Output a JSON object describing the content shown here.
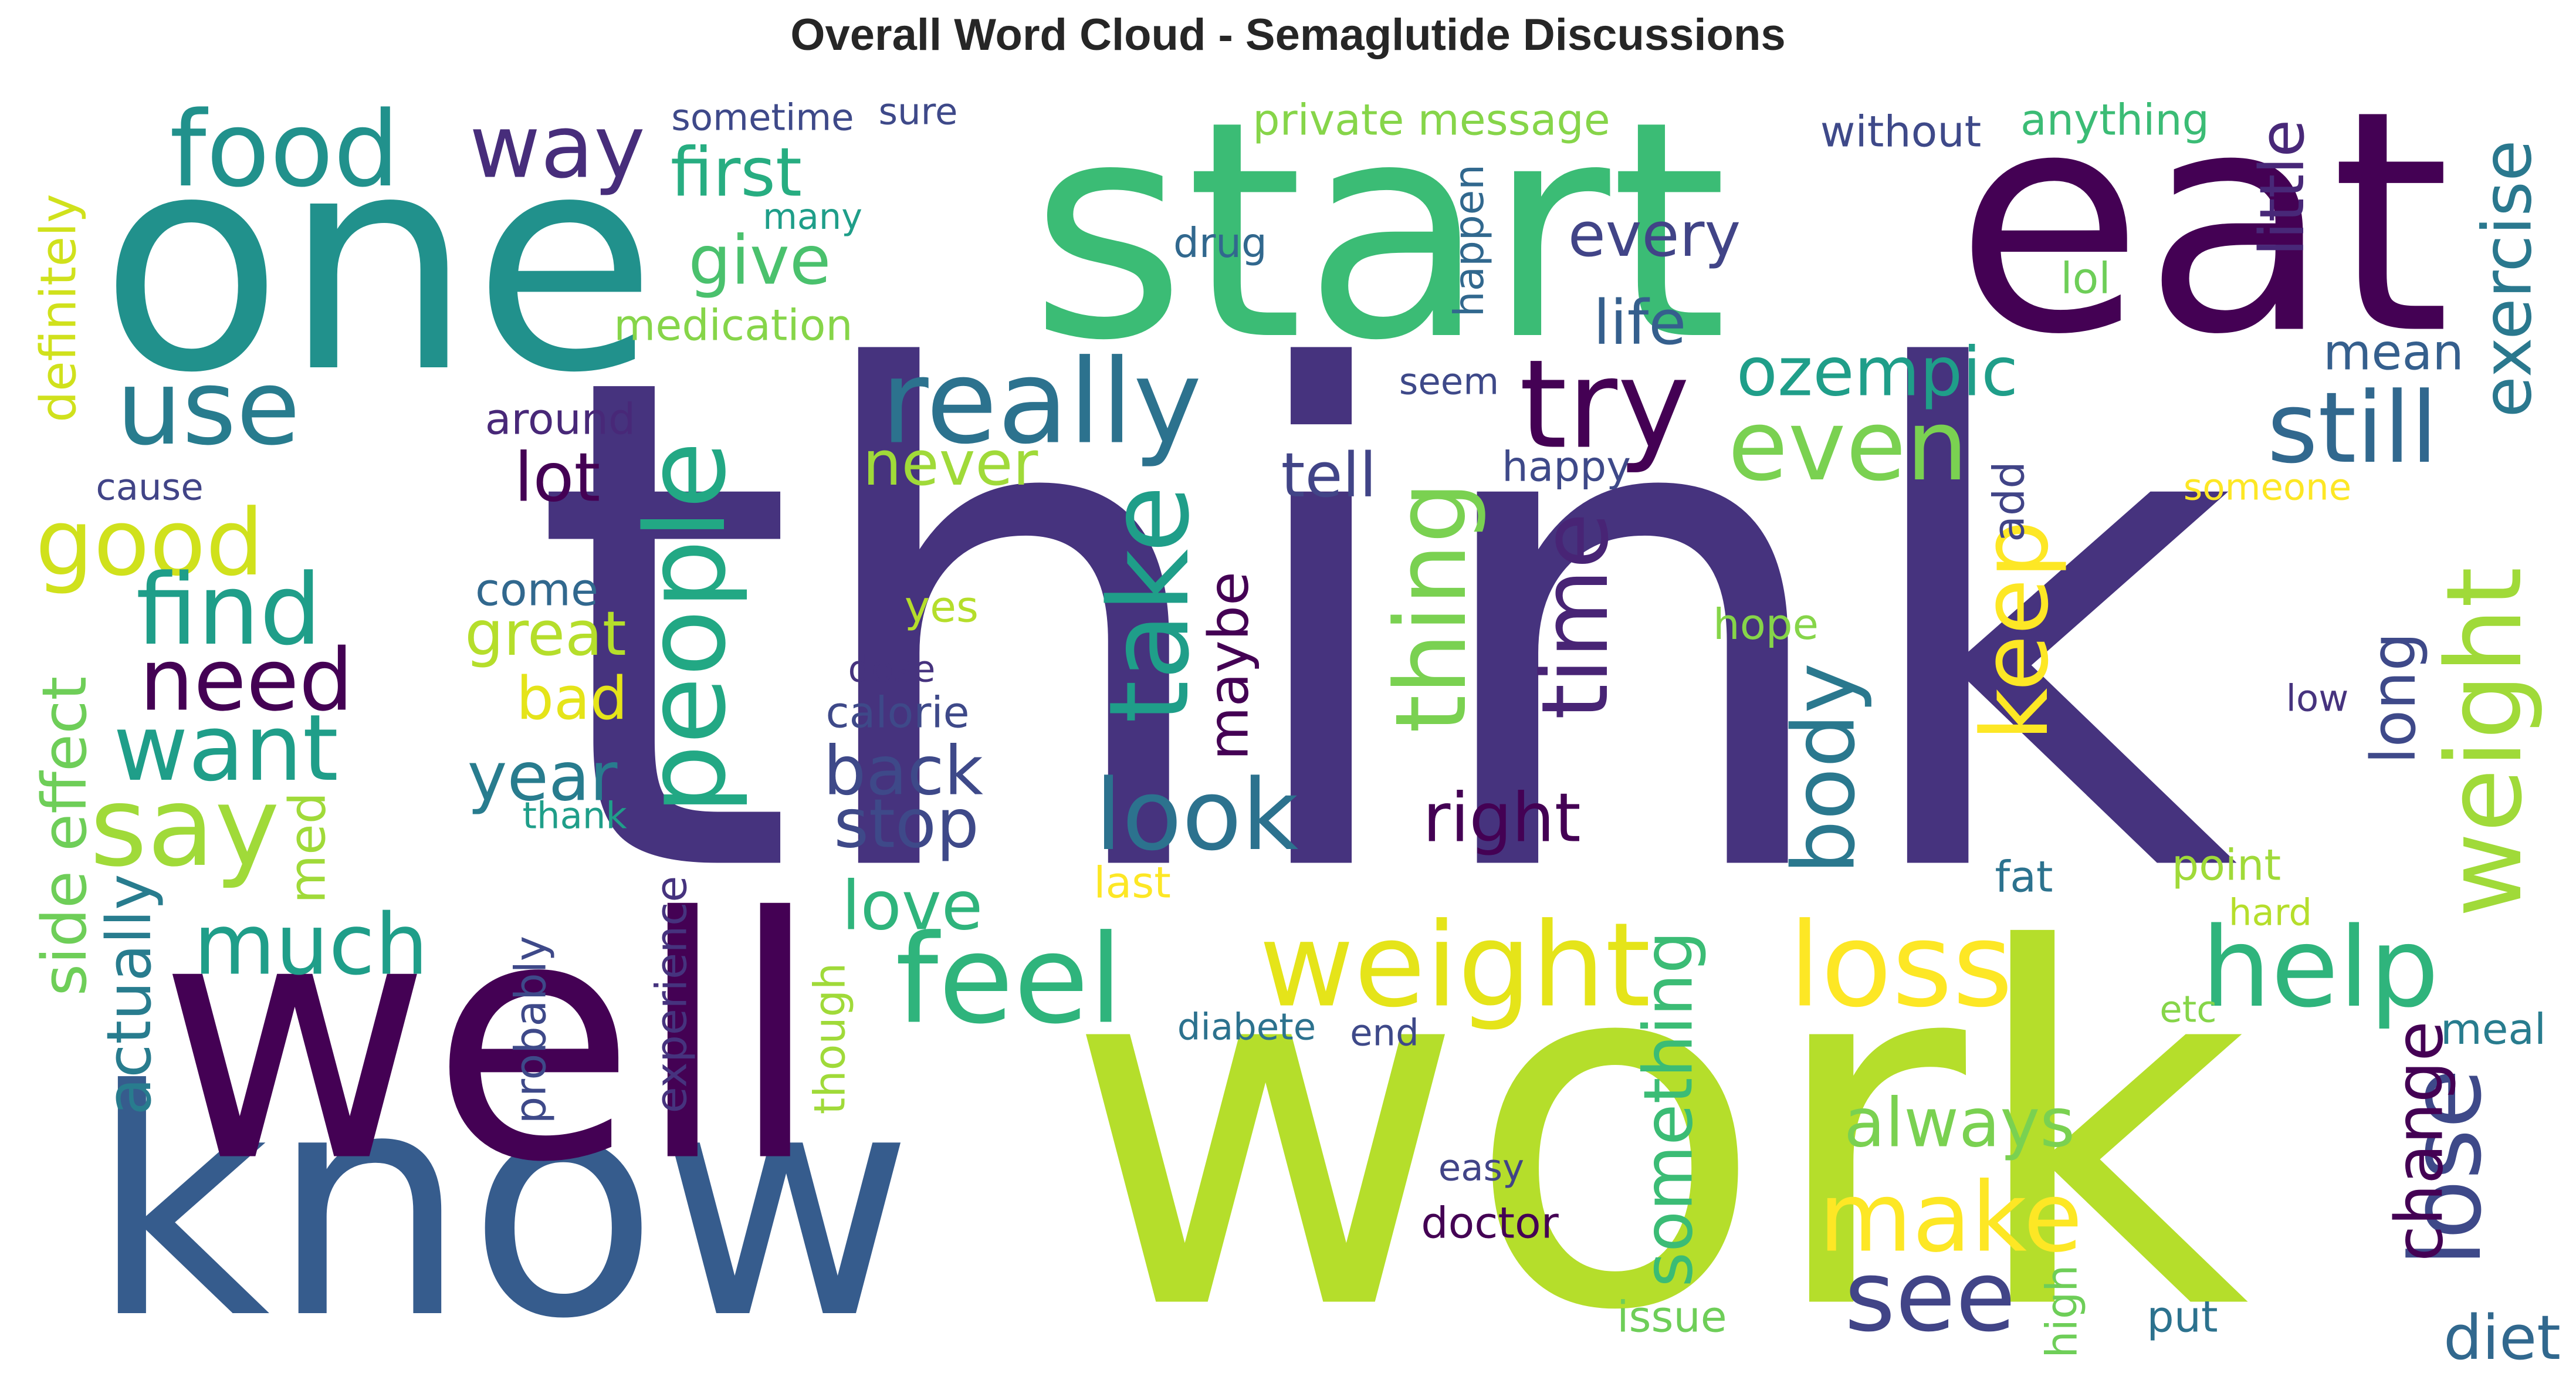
{
  "title": "Overall Word Cloud - Semaglutide Discussions",
  "chart_data": {
    "type": "wordcloud",
    "colormap": "viridis",
    "background": "#ffffff",
    "words": [
      {
        "text": "think",
        "color": "#46337e"
      },
      {
        "text": "work",
        "color": "#b5de2b"
      },
      {
        "text": "one",
        "color": "#21918c"
      },
      {
        "text": "start",
        "color": "#3bbc75"
      },
      {
        "text": "eat",
        "color": "#440154"
      },
      {
        "text": "know",
        "color": "#365c8d"
      },
      {
        "text": "well",
        "color": "#440154"
      },
      {
        "text": "food",
        "color": "#21918c"
      },
      {
        "text": "way",
        "color": "#472d7b"
      },
      {
        "text": "use",
        "color": "#287c8e"
      },
      {
        "text": "really",
        "color": "#2c728e"
      },
      {
        "text": "try",
        "color": "#440154"
      },
      {
        "text": "still",
        "color": "#31688e"
      },
      {
        "text": "even",
        "color": "#7ad151"
      },
      {
        "text": "good",
        "color": "#d0e11c"
      },
      {
        "text": "people",
        "color": "#22a884"
      },
      {
        "text": "take",
        "color": "#1f9e89"
      },
      {
        "text": "time",
        "color": "#482475"
      },
      {
        "text": "thing",
        "color": "#7ad151"
      },
      {
        "text": "find",
        "color": "#1f9e89"
      },
      {
        "text": "need",
        "color": "#440154"
      },
      {
        "text": "want",
        "color": "#1f9e89"
      },
      {
        "text": "say",
        "color": "#a0da39"
      },
      {
        "text": "look",
        "color": "#2c728e"
      },
      {
        "text": "keep",
        "color": "#fde725"
      },
      {
        "text": "body",
        "color": "#2a788e"
      },
      {
        "text": "weight",
        "color": "#e5e419"
      },
      {
        "text": "loss",
        "color": "#fde725"
      },
      {
        "text": "feel",
        "color": "#2fb47c"
      },
      {
        "text": "help",
        "color": "#2fb47c"
      },
      {
        "text": "weight",
        "color": "#a0da39"
      },
      {
        "text": "lose",
        "color": "#3e4989"
      },
      {
        "text": "much",
        "color": "#1f9e89"
      },
      {
        "text": "make",
        "color": "#fde725"
      },
      {
        "text": "see",
        "color": "#414487"
      },
      {
        "text": "first",
        "color": "#27ad81"
      },
      {
        "text": "give",
        "color": "#4ac16d"
      },
      {
        "text": "life",
        "color": "#355f8d"
      },
      {
        "text": "ozempic",
        "color": "#1f9e89"
      },
      {
        "text": "every",
        "color": "#414487"
      },
      {
        "text": "mean",
        "color": "#355f8d"
      },
      {
        "text": "exercise",
        "color": "#2a788e"
      },
      {
        "text": "little",
        "color": "#482878"
      },
      {
        "text": "lot",
        "color": "#440154"
      },
      {
        "text": "never",
        "color": "#a0da39"
      },
      {
        "text": "tell",
        "color": "#414487"
      },
      {
        "text": "come",
        "color": "#31688e"
      },
      {
        "text": "great",
        "color": "#b5de2b"
      },
      {
        "text": "bad",
        "color": "#e5e419"
      },
      {
        "text": "year",
        "color": "#287c8e"
      },
      {
        "text": "back",
        "color": "#3e4989"
      },
      {
        "text": "stop",
        "color": "#3e4989"
      },
      {
        "text": "love",
        "color": "#2fb47c"
      },
      {
        "text": "right",
        "color": "#440154"
      },
      {
        "text": "maybe",
        "color": "#440154"
      },
      {
        "text": "side effect",
        "color": "#6ece58"
      },
      {
        "text": "actually",
        "color": "#287c8e"
      },
      {
        "text": "med",
        "color": "#a0da39"
      },
      {
        "text": "something",
        "color": "#3bbc75"
      },
      {
        "text": "always",
        "color": "#7ad151"
      },
      {
        "text": "change",
        "color": "#440154"
      },
      {
        "text": "long",
        "color": "#3e4989"
      },
      {
        "text": "diet",
        "color": "#31688e"
      },
      {
        "text": "sometime",
        "color": "#3e4989"
      },
      {
        "text": "sure",
        "color": "#3e4989"
      },
      {
        "text": "private message",
        "color": "#86d549"
      },
      {
        "text": "without",
        "color": "#3e4989"
      },
      {
        "text": "anything",
        "color": "#3bbc75"
      },
      {
        "text": "many",
        "color": "#1f9e89"
      },
      {
        "text": "drug",
        "color": "#31688e"
      },
      {
        "text": "happen",
        "color": "#31688e"
      },
      {
        "text": "lol",
        "color": "#6ece58"
      },
      {
        "text": "medication",
        "color": "#86d549"
      },
      {
        "text": "definitely",
        "color": "#d0e11c"
      },
      {
        "text": "around",
        "color": "#482878"
      },
      {
        "text": "seem",
        "color": "#3e4989"
      },
      {
        "text": "happy",
        "color": "#3e4989"
      },
      {
        "text": "add",
        "color": "#414487"
      },
      {
        "text": "someone",
        "color": "#fde725"
      },
      {
        "text": "cause",
        "color": "#414487"
      },
      {
        "text": "yes",
        "color": "#b5de2b"
      },
      {
        "text": "hope",
        "color": "#86d549"
      },
      {
        "text": "dose",
        "color": "#46337e"
      },
      {
        "text": "calorie",
        "color": "#3e4989"
      },
      {
        "text": "low",
        "color": "#46337e"
      },
      {
        "text": "thank",
        "color": "#1f9e89"
      },
      {
        "text": "last",
        "color": "#fde725"
      },
      {
        "text": "fat",
        "color": "#2c728e"
      },
      {
        "text": "point",
        "color": "#a0da39"
      },
      {
        "text": "hard",
        "color": "#b5de2b"
      },
      {
        "text": "probably",
        "color": "#3e4989"
      },
      {
        "text": "experience",
        "color": "#46337e"
      },
      {
        "text": "though",
        "color": "#a0da39"
      },
      {
        "text": "diabete",
        "color": "#2c728e"
      },
      {
        "text": "end",
        "color": "#3e4989"
      },
      {
        "text": "etc",
        "color": "#86d549"
      },
      {
        "text": "meal",
        "color": "#287c8e"
      },
      {
        "text": "easy",
        "color": "#414487"
      },
      {
        "text": "doctor",
        "color": "#440154"
      },
      {
        "text": "issue",
        "color": "#6ece58"
      },
      {
        "text": "high",
        "color": "#6ece58"
      },
      {
        "text": "put",
        "color": "#2c728e"
      }
    ]
  }
}
